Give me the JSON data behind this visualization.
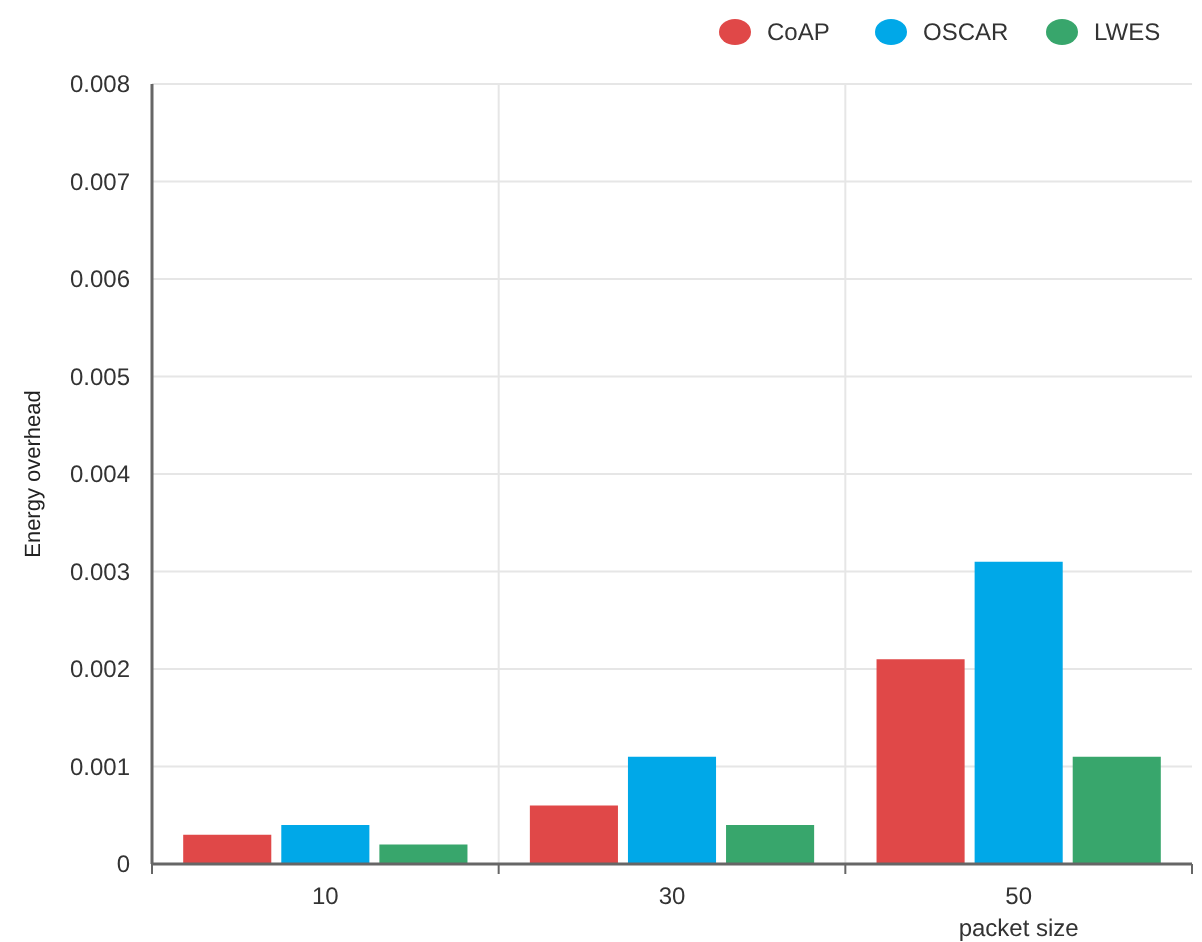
{
  "chart_data": {
    "type": "bar",
    "xlabel": "packet size",
    "ylabel": "Energy overhead",
    "categories": [
      "10",
      "30",
      "50"
    ],
    "series": [
      {
        "name": "CoAP",
        "color": "#e04848",
        "values": [
          0.0003,
          0.0006,
          0.0021
        ]
      },
      {
        "name": "OSCAR",
        "color": "#00a8e8",
        "values": [
          0.0004,
          0.0011,
          0.0031
        ]
      },
      {
        "name": "LWES",
        "color": "#38a66c",
        "values": [
          0.0002,
          0.0004,
          0.0011
        ]
      }
    ],
    "ylim": [
      0,
      0.008
    ],
    "yticks": [
      0,
      0.001,
      0.002,
      0.003,
      0.004,
      0.005,
      0.006,
      0.007,
      0.008
    ],
    "grid": true,
    "legend": "top right"
  }
}
